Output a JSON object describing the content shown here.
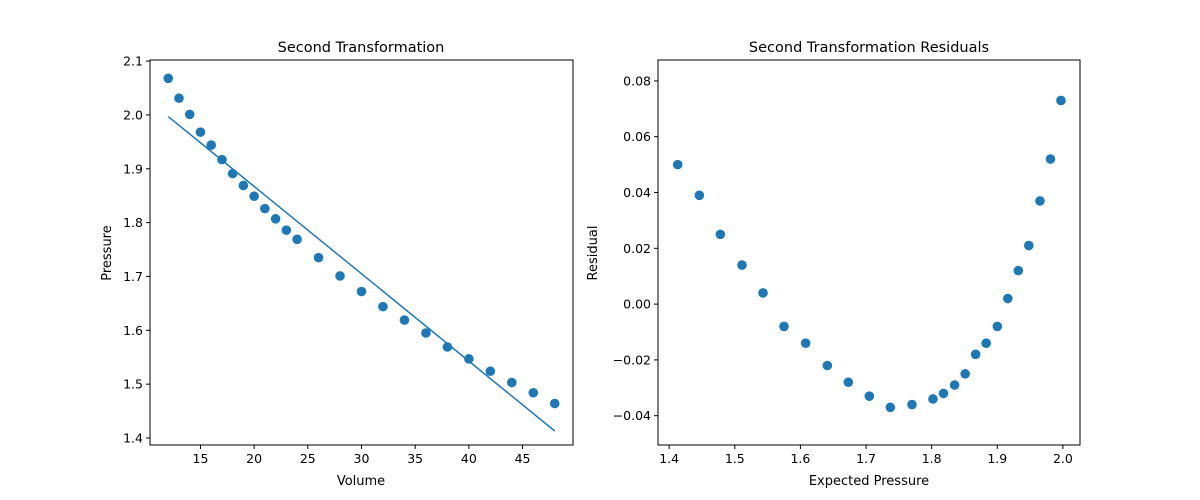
{
  "chart_data": [
    {
      "type": "scatter",
      "title": "Second Transformation",
      "xlabel": "Volume",
      "ylabel": "Pressure",
      "xlim": [
        10.3,
        49.7
      ],
      "ylim": [
        1.387,
        2.102
      ],
      "xticks": [
        15,
        20,
        25,
        30,
        35,
        40,
        45
      ],
      "yticks": [
        1.4,
        1.5,
        1.6,
        1.7,
        1.8,
        1.9,
        2.0,
        2.1
      ],
      "tick_decimals_x": 0,
      "tick_decimals_y": 1,
      "color": "#1f77b4",
      "grid": false,
      "points": {
        "x": [
          12,
          13,
          14,
          15,
          16,
          17,
          18,
          19,
          20,
          21,
          22,
          23,
          24,
          26,
          28,
          30,
          32,
          34,
          36,
          38,
          40,
          42,
          44,
          46,
          48
        ],
        "y": [
          2.068,
          2.031,
          2.001,
          1.968,
          1.944,
          1.917,
          1.891,
          1.869,
          1.849,
          1.826,
          1.807,
          1.786,
          1.769,
          1.735,
          1.701,
          1.672,
          1.644,
          1.619,
          1.595,
          1.569,
          1.547,
          1.524,
          1.503,
          1.484,
          1.464
        ]
      },
      "fit_line": {
        "x": [
          12,
          48
        ],
        "y": [
          1.997,
          1.413
        ]
      }
    },
    {
      "type": "scatter",
      "title": "Second Transformation Residuals",
      "xlabel": "Expected Pressure",
      "ylabel": "Residual",
      "xlim": [
        1.383,
        2.026
      ],
      "ylim": [
        -0.0505,
        0.0875
      ],
      "xticks": [
        1.4,
        1.5,
        1.6,
        1.7,
        1.8,
        1.9,
        2.0
      ],
      "yticks": [
        -0.04,
        -0.02,
        0.0,
        0.02,
        0.04,
        0.06,
        0.08
      ],
      "tick_decimals_x": 1,
      "tick_decimals_y": 2,
      "color": "#1f77b4",
      "grid": false,
      "points": {
        "x": [
          1.413,
          1.446,
          1.478,
          1.511,
          1.543,
          1.575,
          1.608,
          1.641,
          1.673,
          1.705,
          1.737,
          1.77,
          1.802,
          1.818,
          1.835,
          1.851,
          1.867,
          1.883,
          1.9,
          1.916,
          1.932,
          1.948,
          1.965,
          1.981,
          1.997
        ],
        "y": [
          0.05,
          0.039,
          0.025,
          0.014,
          0.004,
          -0.008,
          -0.014,
          -0.022,
          -0.028,
          -0.033,
          -0.037,
          -0.036,
          -0.034,
          -0.032,
          -0.029,
          -0.025,
          -0.018,
          -0.014,
          -0.008,
          0.002,
          0.012,
          0.021,
          0.037,
          0.052,
          0.073
        ]
      }
    }
  ]
}
